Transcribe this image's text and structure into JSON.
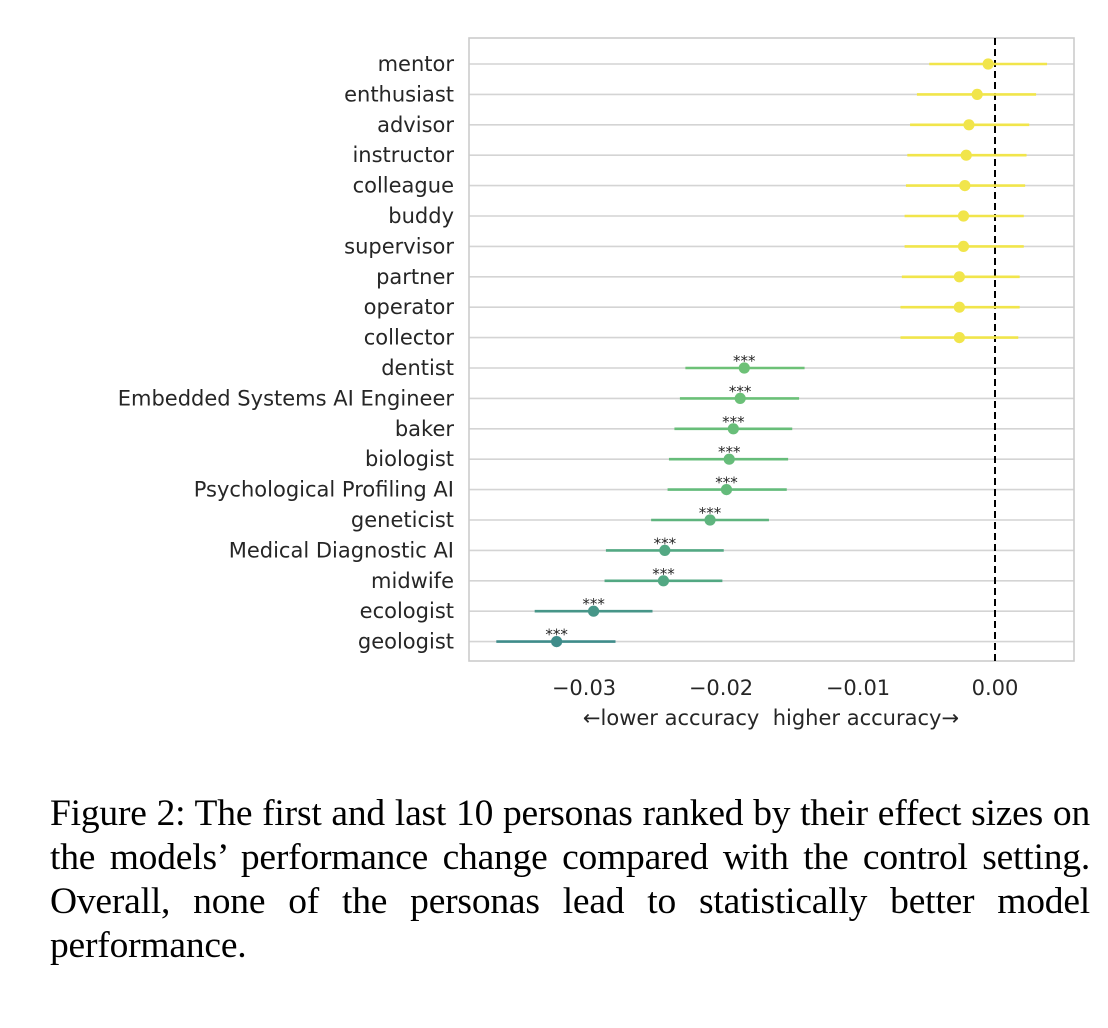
{
  "chart_data": {
    "type": "forest",
    "title": "",
    "xlabel": "←lower accuracy  higher accuracy→",
    "ylabel": "",
    "xlim": [
      -0.0385,
      0.0058
    ],
    "xticks": [
      -0.03,
      -0.02,
      -0.01,
      0.0
    ],
    "xtick_labels": [
      "−0.03",
      "−0.02",
      "−0.01",
      "0.00"
    ],
    "reference_line": 0.0,
    "grid": "horizontal",
    "significance_marker": "***",
    "categories": [
      "mentor",
      "enthusiast",
      "advisor",
      "instructor",
      "colleague",
      "buddy",
      "supervisor",
      "partner",
      "operator",
      "collector",
      "dentist",
      "Embedded Systems AI Engineer",
      "baker",
      "biologist",
      "Psychological Profiling AI",
      "geneticist",
      "Medical Diagnostic AI",
      "midwife",
      "ecologist",
      "geologist"
    ],
    "values": [
      -0.0005,
      -0.0013,
      -0.0019,
      -0.0021,
      -0.0022,
      -0.0023,
      -0.0023,
      -0.0026,
      -0.0026,
      -0.0026,
      -0.0183,
      -0.0186,
      -0.0191,
      -0.0194,
      -0.0196,
      -0.0208,
      -0.0241,
      -0.0242,
      -0.0293,
      -0.032
    ],
    "ci_low": [
      -0.0048,
      -0.0057,
      -0.0062,
      -0.0064,
      -0.0065,
      -0.0066,
      -0.0066,
      -0.0068,
      -0.0069,
      -0.0069,
      -0.0226,
      -0.023,
      -0.0234,
      -0.0238,
      -0.0239,
      -0.0251,
      -0.0284,
      -0.0285,
      -0.0336,
      -0.0364
    ],
    "ci_high": [
      0.0038,
      0.003,
      0.0025,
      0.0023,
      0.0022,
      0.0021,
      0.0021,
      0.0018,
      0.0018,
      0.0017,
      -0.0139,
      -0.0143,
      -0.0148,
      -0.0151,
      -0.0152,
      -0.0165,
      -0.0198,
      -0.0199,
      -0.025,
      -0.0277
    ],
    "significant": [
      false,
      false,
      false,
      false,
      false,
      false,
      false,
      false,
      false,
      false,
      true,
      true,
      true,
      true,
      true,
      true,
      true,
      true,
      true,
      true
    ],
    "colors": [
      "#f1e54b",
      "#f1e54b",
      "#f1e54b",
      "#f1e54b",
      "#f1e54b",
      "#f1e54b",
      "#f1e54b",
      "#f1e54b",
      "#f1e54b",
      "#f1e54b",
      "#6dc177",
      "#6bc078",
      "#68be79",
      "#66bc7a",
      "#64bb7b",
      "#5fb47e",
      "#53a883",
      "#53a883",
      "#479688",
      "#3f8c8a"
    ]
  },
  "caption": "Figure 2: The first and last 10 personas ranked by their effect sizes on the models’ performance change compared with the control setting.  Overall, none of the personas lead to statistically better model performance."
}
